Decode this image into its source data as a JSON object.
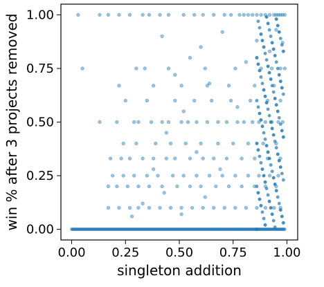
{
  "chart_data": {
    "type": "scatter",
    "title": "",
    "xlabel": "singleton addition",
    "ylabel": "win % after 3 projects removed",
    "xlim": [
      -0.05,
      1.05
    ],
    "ylim": [
      -0.05,
      1.05
    ],
    "xticks": [
      0.0,
      0.25,
      0.5,
      0.75,
      1.0
    ],
    "yticks": [
      0.0,
      0.25,
      0.5,
      0.75,
      1.0
    ],
    "xtick_labels": [
      "0.00",
      "0.25",
      "0.50",
      "0.75",
      "1.00"
    ],
    "ytick_labels": [
      "0.00",
      "0.25",
      "0.50",
      "0.75",
      "1.00"
    ],
    "grid": false,
    "legend": "none",
    "marker_color": "#1f77b4",
    "marker_alpha": 0.45,
    "series": [
      {
        "points": [
          [
            0.03,
            1.0
          ],
          [
            0.13,
            1.0
          ],
          [
            0.17,
            1.0
          ],
          [
            0.22,
            1.0
          ],
          [
            0.27,
            1.0
          ],
          [
            0.33,
            1.0
          ],
          [
            0.36,
            1.0
          ],
          [
            0.41,
            1.0
          ],
          [
            0.45,
            1.0
          ],
          [
            0.52,
            1.0
          ],
          [
            0.57,
            1.0
          ],
          [
            0.61,
            1.0
          ],
          [
            0.66,
            1.0
          ],
          [
            0.71,
            1.0
          ],
          [
            0.74,
            1.0
          ],
          [
            0.78,
            1.0
          ],
          [
            0.8,
            1.0
          ],
          [
            0.82,
            1.0
          ],
          [
            0.84,
            1.0
          ],
          [
            0.86,
            1.0
          ],
          [
            0.88,
            1.0
          ],
          [
            0.9,
            1.0
          ],
          [
            0.92,
            1.0
          ],
          [
            0.94,
            1.0
          ],
          [
            0.95,
            1.0
          ],
          [
            0.96,
            1.0
          ],
          [
            0.97,
            1.0
          ],
          [
            0.98,
            1.0
          ],
          [
            0.99,
            1.0
          ],
          [
            0.05,
            0.75
          ],
          [
            0.3,
            0.75
          ],
          [
            0.34,
            0.75
          ],
          [
            0.45,
            0.75
          ],
          [
            0.62,
            0.75
          ],
          [
            0.76,
            0.75
          ],
          [
            0.88,
            0.75
          ],
          [
            0.93,
            0.75
          ],
          [
            0.97,
            0.75
          ],
          [
            0.99,
            0.75
          ],
          [
            0.13,
            0.5
          ],
          [
            0.21,
            0.5
          ],
          [
            0.29,
            0.5
          ],
          [
            0.31,
            0.5
          ],
          [
            0.37,
            0.5
          ],
          [
            0.42,
            0.5
          ],
          [
            0.45,
            0.5
          ],
          [
            0.51,
            0.5
          ],
          [
            0.54,
            0.5
          ],
          [
            0.58,
            0.5
          ],
          [
            0.63,
            0.5
          ],
          [
            0.68,
            0.5
          ],
          [
            0.72,
            0.5
          ],
          [
            0.77,
            0.5
          ],
          [
            0.8,
            0.5
          ],
          [
            0.84,
            0.5
          ],
          [
            0.87,
            0.5
          ],
          [
            0.9,
            0.5
          ],
          [
            0.93,
            0.5
          ],
          [
            0.96,
            0.5
          ],
          [
            0.98,
            0.5
          ],
          [
            0.18,
            0.33
          ],
          [
            0.23,
            0.33
          ],
          [
            0.27,
            0.33
          ],
          [
            0.33,
            0.33
          ],
          [
            0.38,
            0.33
          ],
          [
            0.44,
            0.33
          ],
          [
            0.48,
            0.33
          ],
          [
            0.55,
            0.33
          ],
          [
            0.61,
            0.33
          ],
          [
            0.66,
            0.33
          ],
          [
            0.72,
            0.33
          ],
          [
            0.79,
            0.33
          ],
          [
            0.85,
            0.33
          ],
          [
            0.91,
            0.33
          ],
          [
            0.97,
            0.33
          ],
          [
            0.19,
            0.25
          ],
          [
            0.24,
            0.25
          ],
          [
            0.29,
            0.25
          ],
          [
            0.35,
            0.25
          ],
          [
            0.4,
            0.25
          ],
          [
            0.47,
            0.25
          ],
          [
            0.52,
            0.25
          ],
          [
            0.58,
            0.25
          ],
          [
            0.64,
            0.25
          ],
          [
            0.7,
            0.25
          ],
          [
            0.76,
            0.25
          ],
          [
            0.82,
            0.25
          ],
          [
            0.87,
            0.25
          ],
          [
            0.92,
            0.25
          ],
          [
            0.96,
            0.25
          ],
          [
            0.17,
            0.2
          ],
          [
            0.21,
            0.2
          ],
          [
            0.26,
            0.2
          ],
          [
            0.31,
            0.2
          ],
          [
            0.36,
            0.2
          ],
          [
            0.42,
            0.2
          ],
          [
            0.49,
            0.2
          ],
          [
            0.55,
            0.2
          ],
          [
            0.6,
            0.2
          ],
          [
            0.67,
            0.2
          ],
          [
            0.73,
            0.2
          ],
          [
            0.79,
            0.2
          ],
          [
            0.85,
            0.2
          ],
          [
            0.9,
            0.2
          ],
          [
            0.95,
            0.2
          ],
          [
            0.17,
            0.1
          ],
          [
            0.22,
            0.1
          ],
          [
            0.27,
            0.1
          ],
          [
            0.31,
            0.1
          ],
          [
            0.36,
            0.1
          ],
          [
            0.41,
            0.1
          ],
          [
            0.46,
            0.1
          ],
          [
            0.51,
            0.1
          ],
          [
            0.56,
            0.1
          ],
          [
            0.61,
            0.1
          ],
          [
            0.66,
            0.1
          ],
          [
            0.71,
            0.1
          ],
          [
            0.76,
            0.1
          ],
          [
            0.81,
            0.1
          ],
          [
            0.86,
            0.1
          ],
          [
            0.9,
            0.1
          ],
          [
            0.94,
            0.1
          ],
          [
            0.97,
            0.1
          ],
          [
            0.24,
            0.4
          ],
          [
            0.3,
            0.4
          ],
          [
            0.39,
            0.4
          ],
          [
            0.46,
            0.4
          ],
          [
            0.53,
            0.4
          ],
          [
            0.6,
            0.4
          ],
          [
            0.68,
            0.4
          ],
          [
            0.75,
            0.4
          ],
          [
            0.82,
            0.4
          ],
          [
            0.89,
            0.4
          ],
          [
            0.95,
            0.4
          ],
          [
            0.25,
            0.6
          ],
          [
            0.35,
            0.6
          ],
          [
            0.48,
            0.6
          ],
          [
            0.57,
            0.6
          ],
          [
            0.65,
            0.6
          ],
          [
            0.74,
            0.6
          ],
          [
            0.83,
            0.6
          ],
          [
            0.91,
            0.6
          ],
          [
            0.97,
            0.6
          ],
          [
            0.22,
            0.67
          ],
          [
            0.38,
            0.67
          ],
          [
            0.51,
            0.67
          ],
          [
            0.63,
            0.67
          ],
          [
            0.73,
            0.67
          ],
          [
            0.85,
            0.67
          ],
          [
            0.94,
            0.67
          ],
          [
            0.42,
            0.9
          ],
          [
            0.6,
            0.85
          ],
          [
            0.55,
            0.8
          ],
          [
            0.7,
            0.92
          ],
          [
            0.64,
            0.68
          ],
          [
            0.48,
            0.72
          ],
          [
            0.52,
            0.55
          ],
          [
            0.44,
            0.45
          ],
          [
            0.58,
            0.36
          ],
          [
            0.38,
            0.28
          ],
          [
            0.43,
            0.17
          ],
          [
            0.33,
            0.12
          ],
          [
            0.28,
            0.06
          ],
          [
            0.51,
            0.07
          ],
          [
            0.62,
            0.15
          ],
          [
            0.69,
            0.28
          ],
          [
            0.77,
            0.57
          ],
          [
            0.81,
            0.78
          ],
          [
            0.86,
            0.88
          ],
          [
            0.92,
            0.83
          ],
          [
            0.95,
            0.93
          ],
          [
            0.98,
            0.87
          ]
        ]
      }
    ]
  }
}
